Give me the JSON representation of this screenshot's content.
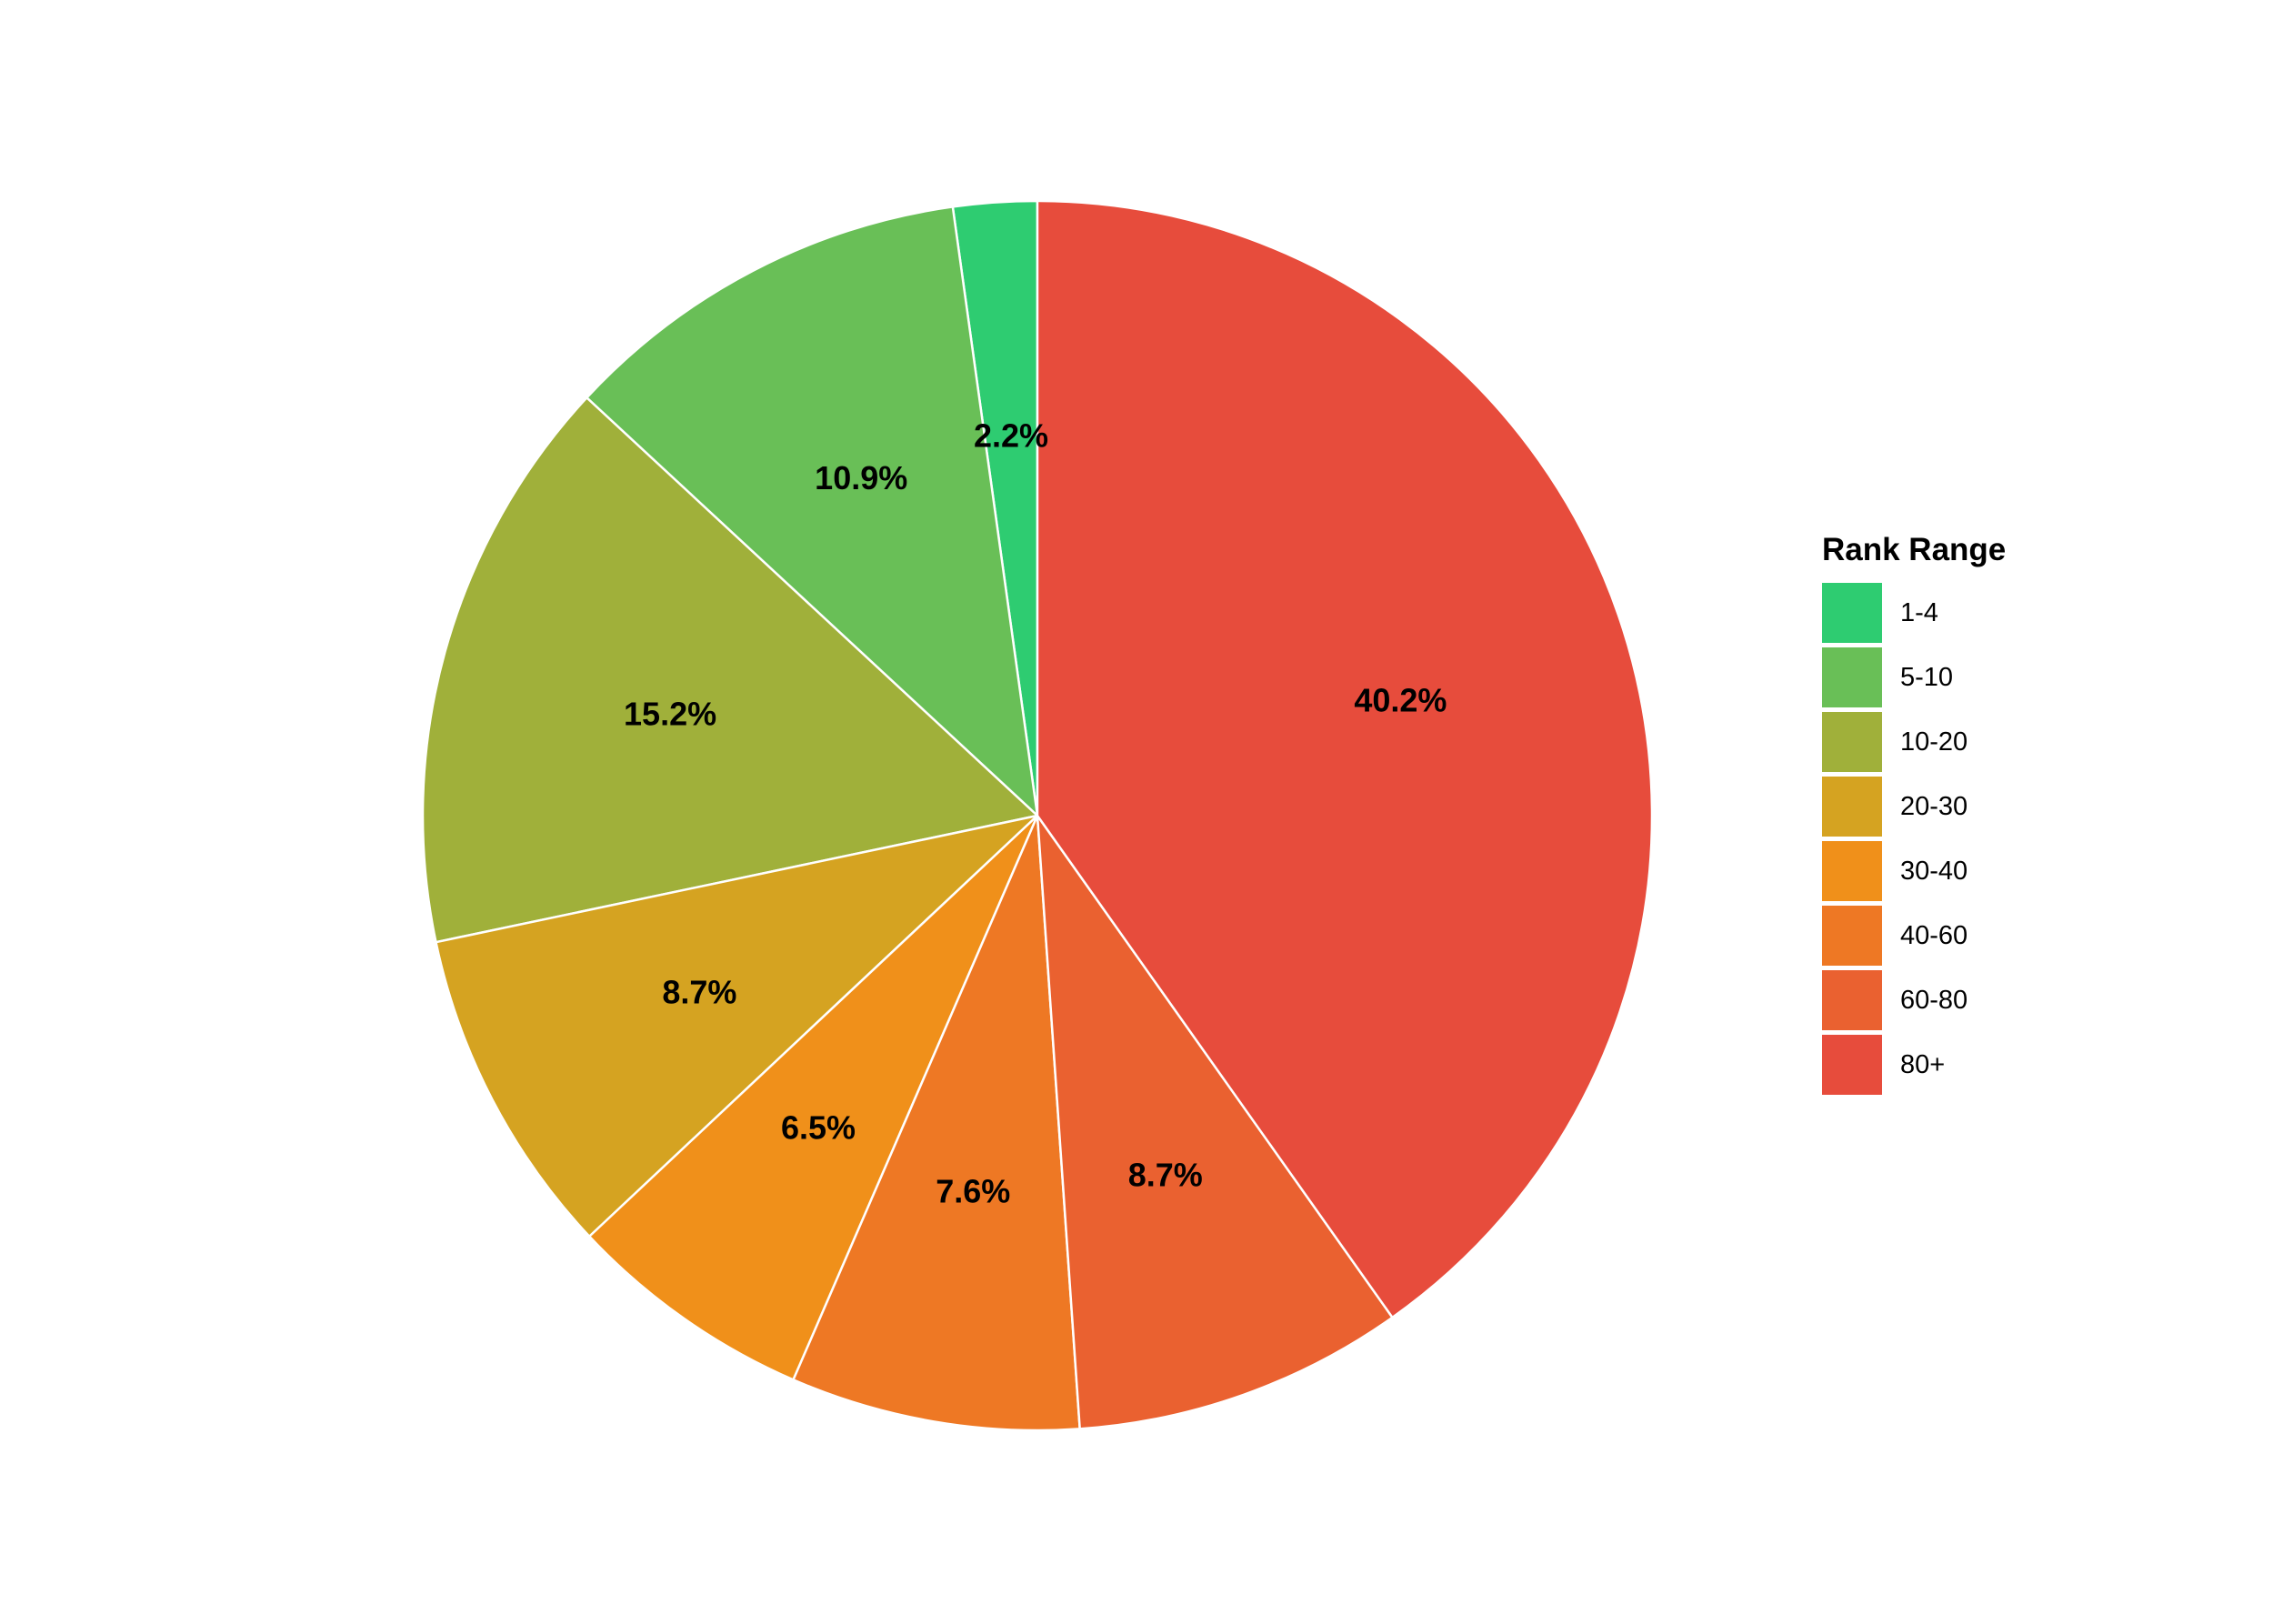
{
  "chart_data": {
    "type": "pie",
    "title": "",
    "start_angle": "12 o'clock",
    "direction": "counterclockwise",
    "legend": {
      "title": "Rank Range",
      "placement": "right"
    },
    "slices": [
      {
        "label": "1-4",
        "value": 2.2,
        "value_label": "2.2%",
        "color": "#2ecc71"
      },
      {
        "label": "5-10",
        "value": 10.9,
        "value_label": "10.9%",
        "color": "#69bf57"
      },
      {
        "label": "10-20",
        "value": 15.2,
        "value_label": "15.2%",
        "color": "#a0b03a"
      },
      {
        "label": "20-30",
        "value": 8.7,
        "value_label": "8.7%",
        "color": "#d5a321"
      },
      {
        "label": "30-40",
        "value": 6.5,
        "value_label": "6.5%",
        "color": "#f0901a"
      },
      {
        "label": "40-60",
        "value": 7.6,
        "value_label": "7.6%",
        "color": "#ee7824"
      },
      {
        "label": "60-80",
        "value": 8.7,
        "value_label": "8.7%",
        "color": "#ea6130"
      },
      {
        "label": "80+",
        "value": 40.2,
        "value_label": "40.2%",
        "color": "#e74c3c"
      }
    ]
  }
}
